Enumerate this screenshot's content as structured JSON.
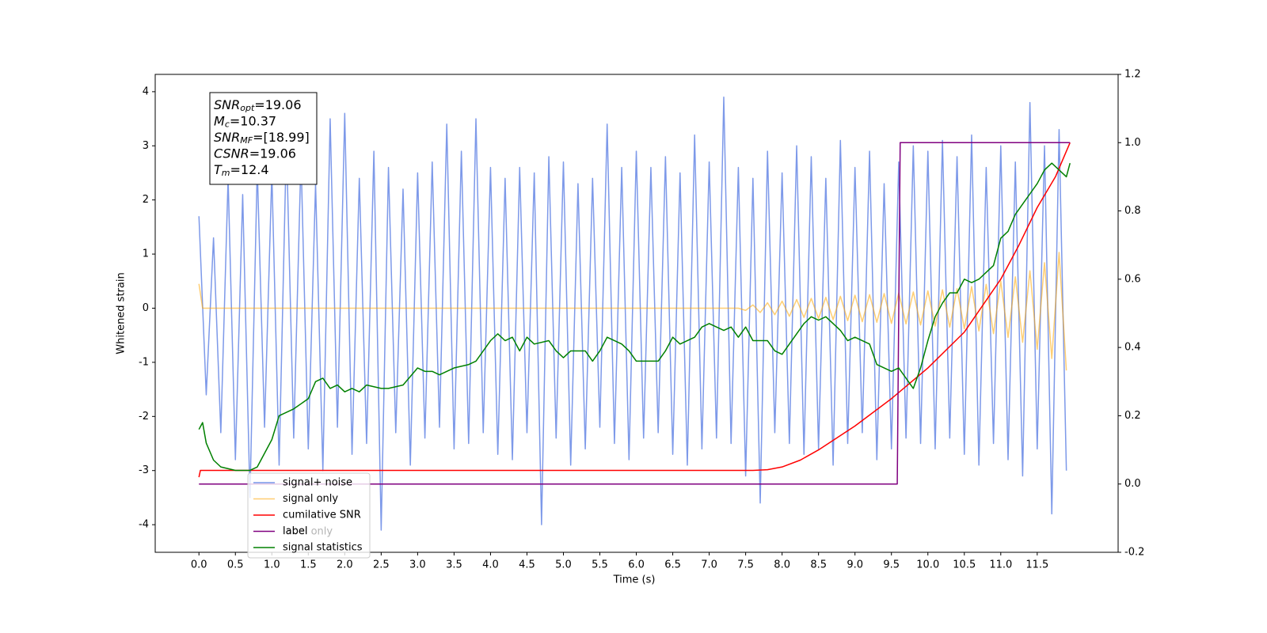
{
  "chart_data": {
    "type": "line",
    "xlabel": "Time (s)",
    "ylabel": "Whitened strain",
    "xlim": [
      -0.6,
      12.61
    ],
    "ylim": [
      -4.51,
      4.32
    ],
    "y2lim": [
      -0.2,
      1.2
    ],
    "xticks": [
      {
        "value": 0,
        "label": "0.0"
      },
      0.5,
      {
        "value": 1,
        "label": "1.0"
      },
      1.5,
      {
        "value": 2,
        "label": "2.0"
      },
      2.5,
      {
        "value": 3,
        "label": "3.0"
      },
      3.5,
      {
        "value": 4,
        "label": "4.0"
      },
      4.5,
      {
        "value": 5,
        "label": "5.0"
      },
      5.5,
      {
        "value": 6,
        "label": "6.0"
      },
      6.5,
      {
        "value": 7,
        "label": "7.0"
      },
      7.5,
      {
        "value": 8,
        "label": "8.0"
      },
      8.5,
      {
        "value": 9,
        "label": "9.0"
      },
      9.5,
      {
        "value": 10,
        "label": "10.0"
      },
      10.5,
      {
        "value": 11,
        "label": "11.0"
      },
      11.5
    ],
    "yticks": [
      -4,
      -3,
      -2,
      -1,
      0,
      1,
      2,
      3,
      4
    ],
    "y2ticks": [
      -0.2,
      {
        "value": 0,
        "label": "0.0"
      },
      0.2,
      0.4,
      0.6,
      0.8,
      {
        "value": 1,
        "label": "1.0"
      },
      1.2
    ],
    "legend": "lower left",
    "legend_overlay": "label only",
    "stats": [
      {
        "main": "SNR",
        "sub": "opt",
        "rest": "=19.06"
      },
      {
        "main": "M",
        "sub": "c",
        "rest": "=10.37"
      },
      {
        "main": "SNR",
        "sub": "MF",
        "rest": "=[18.99]"
      },
      {
        "main": "CSNR",
        "rest": "=19.06"
      },
      {
        "main": "T",
        "sub": "m",
        "rest": "=12.4"
      }
    ],
    "series": [
      {
        "name": "signal+ noise",
        "color": "#7694e8",
        "axis": "y",
        "x": [
          0.0,
          0.1,
          0.2,
          0.3,
          0.4,
          0.5,
          0.6,
          0.7,
          0.8,
          0.9,
          1.0,
          1.1,
          1.2,
          1.3,
          1.4,
          1.5,
          1.6,
          1.7,
          1.8,
          1.9,
          2.0,
          2.1,
          2.2,
          2.3,
          2.4,
          2.5,
          2.6,
          2.7,
          2.8,
          2.9,
          3.0,
          3.1,
          3.2,
          3.3,
          3.4,
          3.5,
          3.6,
          3.7,
          3.8,
          3.9,
          4.0,
          4.1,
          4.2,
          4.3,
          4.4,
          4.5,
          4.6,
          4.7,
          4.8,
          4.9,
          5.0,
          5.1,
          5.2,
          5.3,
          5.4,
          5.5,
          5.6,
          5.7,
          5.8,
          5.9,
          6.0,
          6.1,
          6.2,
          6.3,
          6.4,
          6.5,
          6.6,
          6.7,
          6.8,
          6.9,
          7.0,
          7.1,
          7.2,
          7.3,
          7.4,
          7.5,
          7.6,
          7.7,
          7.8,
          7.9,
          8.0,
          8.1,
          8.2,
          8.3,
          8.4,
          8.5,
          8.6,
          8.7,
          8.8,
          8.9,
          9.0,
          9.1,
          9.2,
          9.3,
          9.4,
          9.5,
          9.6,
          9.7,
          9.8,
          9.9,
          10.0,
          10.1,
          10.2,
          10.3,
          10.4,
          10.5,
          10.6,
          10.7,
          10.8,
          10.9,
          11.0,
          11.1,
          11.2,
          11.3,
          11.4,
          11.5,
          11.6,
          11.7,
          11.8,
          11.9
        ],
        "values": [
          1.7,
          -1.6,
          1.3,
          -2.3,
          2.4,
          -2.8,
          2.1,
          -3.5,
          2.6,
          -2.2,
          2.5,
          -2.9,
          3.1,
          -2.4,
          2.8,
          -2.6,
          2.3,
          -3.0,
          3.5,
          -2.2,
          3.6,
          -2.7,
          2.4,
          -2.5,
          2.9,
          -4.1,
          2.6,
          -2.3,
          2.2,
          -2.9,
          2.5,
          -2.4,
          2.7,
          -2.2,
          3.4,
          -2.6,
          2.9,
          -2.5,
          3.5,
          -2.3,
          2.6,
          -2.7,
          2.4,
          -2.8,
          2.6,
          -2.3,
          2.5,
          -4.0,
          2.8,
          -2.4,
          2.7,
          -2.9,
          2.3,
          -2.6,
          2.4,
          -2.2,
          3.4,
          -2.5,
          2.6,
          -2.8,
          2.9,
          -2.4,
          2.6,
          -2.3,
          2.8,
          -2.7,
          2.5,
          -2.9,
          3.2,
          -2.6,
          2.7,
          -2.4,
          3.9,
          -2.5,
          2.6,
          -3.1,
          2.4,
          -3.6,
          2.9,
          -2.3,
          2.5,
          -2.5,
          3.0,
          -2.7,
          2.8,
          -2.6,
          2.4,
          -2.9,
          3.1,
          -2.5,
          2.6,
          -2.3,
          2.9,
          -2.8,
          2.3,
          -2.6,
          2.7,
          -2.4,
          3.0,
          -2.5,
          2.9,
          -2.6,
          3.1,
          -2.4,
          2.8,
          -2.7,
          3.2,
          -2.9,
          2.6,
          -2.5,
          3.0,
          -2.8,
          2.7,
          -3.1,
          3.8,
          -2.6,
          3.0,
          -3.8,
          3.3,
          -3.0
        ]
      },
      {
        "name": "signal only",
        "color": "#ffa500",
        "axis": "y",
        "x": [
          0,
          0.05,
          7.4,
          7.5,
          7.6,
          7.7,
          7.8,
          7.9,
          8.0,
          8.1,
          8.2,
          8.3,
          8.4,
          8.5,
          8.6,
          8.7,
          8.8,
          8.9,
          9.0,
          9.1,
          9.2,
          9.3,
          9.4,
          9.5,
          9.6,
          9.7,
          9.8,
          9.9,
          10.0,
          10.1,
          10.2,
          10.3,
          10.4,
          10.5,
          10.6,
          10.7,
          10.8,
          10.9,
          11.0,
          11.1,
          11.2,
          11.3,
          11.4,
          11.5,
          11.6,
          11.7,
          11.8,
          11.9
        ],
        "values": [
          0.45,
          0,
          0,
          -0.04,
          0.06,
          -0.08,
          0.1,
          -0.12,
          0.13,
          -0.15,
          0.16,
          -0.17,
          0.18,
          -0.19,
          0.2,
          -0.21,
          0.22,
          -0.23,
          0.24,
          -0.25,
          0.25,
          -0.26,
          0.27,
          -0.28,
          0.28,
          -0.29,
          0.3,
          -0.31,
          0.32,
          -0.33,
          0.34,
          -0.35,
          0.36,
          -0.38,
          0.4,
          -0.42,
          0.44,
          -0.47,
          0.5,
          -0.54,
          0.58,
          -0.63,
          0.69,
          -0.76,
          0.84,
          -0.93,
          1.03,
          -1.15
        ]
      },
      {
        "name": "cumilative SNR",
        "color": "#ff0000",
        "axis": "y2",
        "x": [
          0,
          0.02,
          7.6,
          7.8,
          8.0,
          8.25,
          8.5,
          8.75,
          9.0,
          9.5,
          10.0,
          10.5,
          11.0,
          11.25,
          11.5,
          11.75,
          11.95
        ],
        "values": [
          0.02,
          0.04,
          0.04,
          0.042,
          0.05,
          0.07,
          0.1,
          0.135,
          0.17,
          0.25,
          0.34,
          0.445,
          0.6,
          0.7,
          0.81,
          0.9,
          1.0
        ]
      },
      {
        "name": "label",
        "color": "#800080",
        "axis": "y2",
        "x": [
          0,
          9.58,
          9.62,
          11.95
        ],
        "values": [
          0,
          0,
          1,
          1
        ]
      },
      {
        "name": "signal statistics",
        "color": "#008000",
        "axis": "y2",
        "x": [
          0,
          0.05,
          0.1,
          0.2,
          0.3,
          0.5,
          0.7,
          0.8,
          0.9,
          1.0,
          1.1,
          1.3,
          1.5,
          1.6,
          1.7,
          1.8,
          1.9,
          2.0,
          2.1,
          2.2,
          2.3,
          2.5,
          2.6,
          2.8,
          3.0,
          3.1,
          3.2,
          3.3,
          3.5,
          3.7,
          3.8,
          4.0,
          4.1,
          4.2,
          4.3,
          4.4,
          4.5,
          4.6,
          4.8,
          4.9,
          5.0,
          5.1,
          5.3,
          5.4,
          5.5,
          5.6,
          5.8,
          5.9,
          6.0,
          6.1,
          6.3,
          6.4,
          6.5,
          6.6,
          6.8,
          6.9,
          7.0,
          7.2,
          7.3,
          7.4,
          7.5,
          7.6,
          7.8,
          7.9,
          8.0,
          8.1,
          8.3,
          8.4,
          8.5,
          8.6,
          8.8,
          8.9,
          9.0,
          9.2,
          9.3,
          9.5,
          9.6,
          9.7,
          9.8,
          9.9,
          10.0,
          10.1,
          10.2,
          10.3,
          10.4,
          10.5,
          10.6,
          10.7,
          10.8,
          10.9,
          11.0,
          11.1,
          11.2,
          11.3,
          11.4,
          11.5,
          11.6,
          11.7,
          11.8,
          11.9,
          11.95
        ],
        "values": [
          0.16,
          0.18,
          0.12,
          0.07,
          0.05,
          0.04,
          0.04,
          0.05,
          0.09,
          0.13,
          0.2,
          0.22,
          0.25,
          0.3,
          0.31,
          0.28,
          0.29,
          0.27,
          0.28,
          0.27,
          0.29,
          0.28,
          0.28,
          0.29,
          0.34,
          0.33,
          0.33,
          0.32,
          0.34,
          0.35,
          0.36,
          0.42,
          0.44,
          0.42,
          0.43,
          0.39,
          0.43,
          0.41,
          0.42,
          0.39,
          0.37,
          0.39,
          0.39,
          0.36,
          0.39,
          0.43,
          0.41,
          0.39,
          0.36,
          0.36,
          0.36,
          0.39,
          0.43,
          0.41,
          0.43,
          0.46,
          0.47,
          0.45,
          0.46,
          0.43,
          0.46,
          0.42,
          0.42,
          0.39,
          0.38,
          0.41,
          0.47,
          0.49,
          0.48,
          0.49,
          0.45,
          0.42,
          0.43,
          0.41,
          0.35,
          0.33,
          0.34,
          0.31,
          0.28,
          0.34,
          0.42,
          0.49,
          0.53,
          0.56,
          0.56,
          0.6,
          0.59,
          0.6,
          0.62,
          0.64,
          0.72,
          0.74,
          0.79,
          0.82,
          0.85,
          0.88,
          0.92,
          0.94,
          0.92,
          0.9,
          0.94
        ]
      }
    ]
  }
}
